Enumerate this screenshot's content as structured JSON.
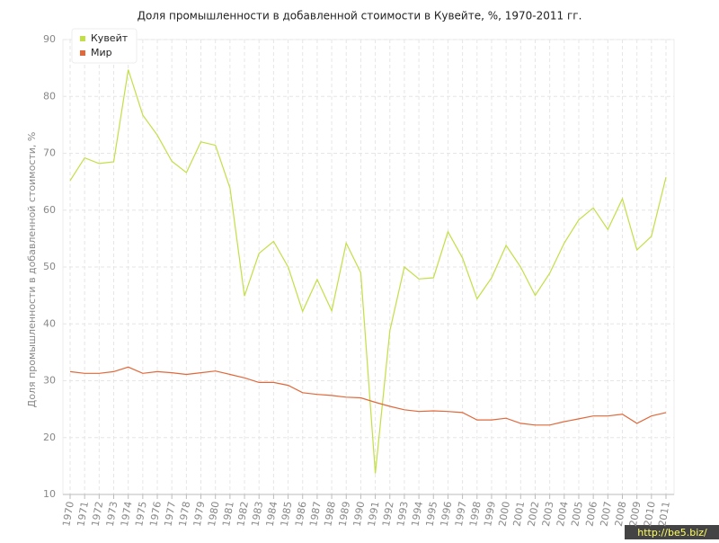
{
  "chart_data": {
    "type": "line",
    "title": "Доля промышленности в добавленной стоимости в Кувейте, %, 1970-2011 гг.",
    "y_label": "Доля промышленности в добавленной стоимости, %",
    "watermark": "http://be5.biz/",
    "categories": [
      "1970",
      "1971",
      "1972",
      "1973",
      "1974",
      "1975",
      "1976",
      "1977",
      "1978",
      "1979",
      "1980",
      "1981",
      "1982",
      "1983",
      "1984",
      "1985",
      "1986",
      "1987",
      "1988",
      "1989",
      "1990",
      "1991",
      "1992",
      "1993",
      "1994",
      "1995",
      "1996",
      "1997",
      "1998",
      "1999",
      "2000",
      "2001",
      "2002",
      "2003",
      "2004",
      "2005",
      "2006",
      "2007",
      "2008",
      "2009",
      "2010",
      "2011"
    ],
    "series": [
      {
        "name": "Кувейт",
        "color": "#c2df45",
        "values": [
          65.2,
          69.2,
          68.2,
          68.5,
          84.7,
          76.7,
          73.2,
          68.6,
          66.6,
          72.0,
          71.4,
          63.9,
          44.9,
          52.4,
          54.5,
          50.0,
          42.2,
          47.8,
          42.3,
          54.2,
          49.0,
          13.7,
          38.8,
          50.0,
          47.9,
          48.1,
          56.2,
          51.6,
          44.4,
          48.1,
          53.8,
          50.0,
          45.0,
          48.9,
          54.2,
          58.3,
          60.4,
          56.6,
          62.0,
          53.0,
          55.4,
          65.8
        ]
      },
      {
        "name": "Мир",
        "color": "#e0683a",
        "values": [
          31.6,
          31.3,
          31.3,
          31.6,
          32.4,
          31.3,
          31.6,
          31.4,
          31.1,
          31.4,
          31.7,
          31.1,
          30.5,
          29.7,
          29.7,
          29.2,
          27.9,
          27.6,
          27.4,
          27.1,
          27.0,
          26.2,
          25.5,
          24.9,
          24.6,
          24.7,
          24.6,
          24.4,
          23.1,
          23.1,
          23.4,
          22.5,
          22.2,
          22.2,
          22.8,
          23.3,
          23.8,
          23.8,
          24.1,
          22.5,
          23.8,
          24.4
        ]
      }
    ],
    "ylim": [
      10,
      90
    ],
    "yticks": [
      10,
      20,
      30,
      40,
      50,
      60,
      70,
      80,
      90
    ],
    "grid": true,
    "legend": "top-left"
  }
}
